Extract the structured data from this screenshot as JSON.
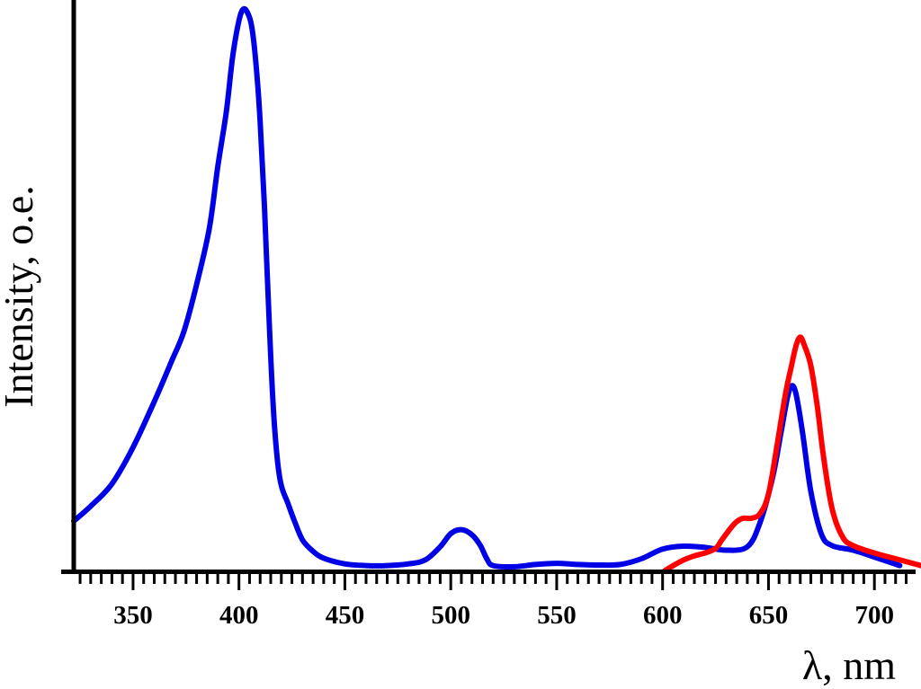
{
  "chart_data": {
    "type": "line",
    "title": "",
    "xlabel": "λ, nm",
    "ylabel": "Intensity, o.e.",
    "xlim": [
      322,
      722
    ],
    "ylim": [
      0,
      1.0
    ],
    "x_major_ticks": [
      350,
      400,
      450,
      500,
      550,
      600,
      650,
      700
    ],
    "x_tick_labels": [
      "350",
      "400",
      "450",
      "500",
      "550",
      "600",
      "650",
      "700"
    ],
    "x_minor_step": 5,
    "y_ticks_shown": false,
    "grid": false,
    "legend": "none",
    "series": [
      {
        "color": "#0000e6",
        "points": [
          [
            322,
            0.088
          ],
          [
            330,
            0.114
          ],
          [
            340,
            0.153
          ],
          [
            350,
            0.217
          ],
          [
            360,
            0.297
          ],
          [
            368,
            0.366
          ],
          [
            374,
            0.42
          ],
          [
            380,
            0.502
          ],
          [
            386,
            0.6
          ],
          [
            390,
            0.708
          ],
          [
            394,
            0.804
          ],
          [
            397,
            0.9
          ],
          [
            400,
            0.964
          ],
          [
            402,
            0.984
          ],
          [
            404,
            0.978
          ],
          [
            406,
            0.954
          ],
          [
            408,
            0.89
          ],
          [
            410,
            0.788
          ],
          [
            412,
            0.64
          ],
          [
            414,
            0.46
          ],
          [
            416,
            0.3
          ],
          [
            418,
            0.2
          ],
          [
            420,
            0.15
          ],
          [
            423,
            0.12
          ],
          [
            426,
            0.09
          ],
          [
            430,
            0.055
          ],
          [
            435,
            0.035
          ],
          [
            440,
            0.023
          ],
          [
            450,
            0.013
          ],
          [
            460,
            0.01
          ],
          [
            470,
            0.01
          ],
          [
            480,
            0.013
          ],
          [
            488,
            0.02
          ],
          [
            495,
            0.043
          ],
          [
            500,
            0.066
          ],
          [
            505,
            0.073
          ],
          [
            510,
            0.064
          ],
          [
            514,
            0.045
          ],
          [
            517,
            0.022
          ],
          [
            520,
            0.01
          ],
          [
            530,
            0.008
          ],
          [
            540,
            0.012
          ],
          [
            550,
            0.014
          ],
          [
            560,
            0.012
          ],
          [
            570,
            0.011
          ],
          [
            580,
            0.012
          ],
          [
            590,
            0.022
          ],
          [
            600,
            0.039
          ],
          [
            610,
            0.044
          ],
          [
            620,
            0.042
          ],
          [
            630,
            0.037
          ],
          [
            640,
            0.043
          ],
          [
            646,
            0.085
          ],
          [
            652,
            0.165
          ],
          [
            656,
            0.245
          ],
          [
            659,
            0.305
          ],
          [
            661,
            0.325
          ],
          [
            663,
            0.31
          ],
          [
            666,
            0.245
          ],
          [
            670,
            0.14
          ],
          [
            675,
            0.065
          ],
          [
            680,
            0.045
          ],
          [
            690,
            0.037
          ],
          [
            700,
            0.025
          ],
          [
            712,
            0.01
          ]
        ]
      },
      {
        "color": "#ff0000",
        "points": [
          [
            601,
            0.001
          ],
          [
            605,
            0.01
          ],
          [
            610,
            0.02
          ],
          [
            615,
            0.027
          ],
          [
            620,
            0.032
          ],
          [
            625,
            0.04
          ],
          [
            628,
            0.055
          ],
          [
            632,
            0.075
          ],
          [
            635,
            0.087
          ],
          [
            638,
            0.093
          ],
          [
            642,
            0.093
          ],
          [
            646,
            0.101
          ],
          [
            650,
            0.135
          ],
          [
            654,
            0.22
          ],
          [
            658,
            0.31
          ],
          [
            661,
            0.362
          ],
          [
            663,
            0.395
          ],
          [
            665,
            0.41
          ],
          [
            667,
            0.395
          ],
          [
            670,
            0.36
          ],
          [
            673,
            0.29
          ],
          [
            676,
            0.2
          ],
          [
            680,
            0.11
          ],
          [
            685,
            0.06
          ],
          [
            690,
            0.045
          ],
          [
            700,
            0.032
          ],
          [
            710,
            0.022
          ],
          [
            722,
            0.01
          ]
        ]
      }
    ]
  }
}
